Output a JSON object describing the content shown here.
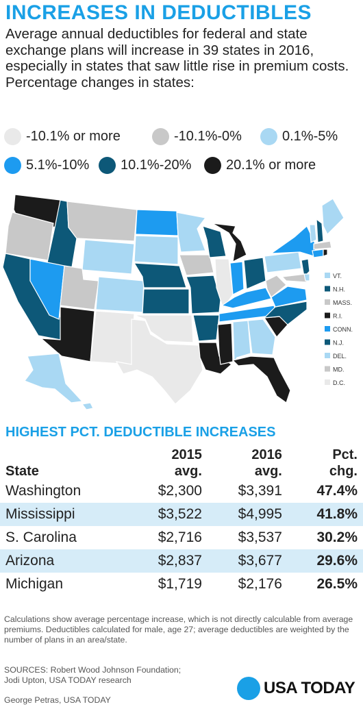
{
  "title": "INCREASES IN DEDUCTIBLES",
  "subtitle": "Average annual deductibles for federal and state exchange plans will increase in 39 states in 2016, especially in states that saw little rise in premium costs. Percentage changes in states:",
  "colors": {
    "c1": "#e9e9e9",
    "c2": "#c8c8c8",
    "c3": "#a9d8f3",
    "c4": "#1d9bf0",
    "c5": "#0d5878",
    "c6": "#1b1b1b",
    "accent": "#1aa0e6",
    "row_shade": "#d6ecf8"
  },
  "legend": [
    {
      "label": "-10.1% or more",
      "key": "c1"
    },
    {
      "label": "-10.1%-0%",
      "key": "c2"
    },
    {
      "label": "0.1%-5%",
      "key": "c3"
    },
    {
      "label": "5.1%-10%",
      "key": "c4"
    },
    {
      "label": "10.1%-20%",
      "key": "c5"
    },
    {
      "label": "20.1% or more",
      "key": "c6"
    }
  ],
  "small_states": [
    {
      "label": "VT.",
      "key": "c3"
    },
    {
      "label": "N.H.",
      "key": "c5"
    },
    {
      "label": "MASS.",
      "key": "c2"
    },
    {
      "label": "R.I.",
      "key": "c6"
    },
    {
      "label": "CONN.",
      "key": "c4"
    },
    {
      "label": "N.J.",
      "key": "c5"
    },
    {
      "label": "DEL.",
      "key": "c3"
    },
    {
      "label": "MD.",
      "key": "c2"
    },
    {
      "label": "D.C.",
      "key": "c1"
    }
  ],
  "table_title": "HIGHEST PCT. DEDUCTIBLE INCREASES",
  "table": {
    "headers": {
      "state": "State",
      "y2015_a": "2015",
      "y2015_b": "avg.",
      "y2016_a": "2016",
      "y2016_b": "avg.",
      "pct_a": "Pct.",
      "pct_b": "chg."
    },
    "rows": [
      {
        "state": "Washington",
        "v2015": "$2,300",
        "v2016": "$3,391",
        "pct": "47.4%"
      },
      {
        "state": "Mississippi",
        "v2015": "$3,522",
        "v2016": "$4,995",
        "pct": "41.8%"
      },
      {
        "state": "S. Carolina",
        "v2015": "$2,716",
        "v2016": "$3,537",
        "pct": "30.2%"
      },
      {
        "state": "Arizona",
        "v2015": "$2,837",
        "v2016": "$3,677",
        "pct": "29.6%"
      },
      {
        "state": "Michigan",
        "v2015": "$1,719",
        "v2016": "$2,176",
        "pct": "26.5%"
      }
    ]
  },
  "chart_data": {
    "type": "table",
    "title": "HIGHEST PCT. DEDUCTIBLE INCREASES",
    "columns": [
      "State",
      "2015 avg.",
      "2016 avg.",
      "Pct. chg."
    ],
    "rows": [
      [
        "Washington",
        2300,
        3391,
        47.4
      ],
      [
        "Mississippi",
        3522,
        4995,
        41.8
      ],
      [
        "S. Carolina",
        2716,
        3537,
        30.2
      ],
      [
        "Arizona",
        2837,
        3677,
        29.6
      ],
      [
        "Michigan",
        1719,
        2176,
        26.5
      ]
    ]
  },
  "note": "Calculations show average percentage increase, which is not directly calculable from average premiums. Deductibles calculated for male, age 27; average deductibles are weighted by the number of plans in an area/state.",
  "sources_1": "SOURCES:  Robert Wood Johnson Foundation;",
  "sources_2": "Jodi Upton, USA TODAY research",
  "credit": "George Petras, USA TODAY",
  "logo_text": "USA TODAY"
}
